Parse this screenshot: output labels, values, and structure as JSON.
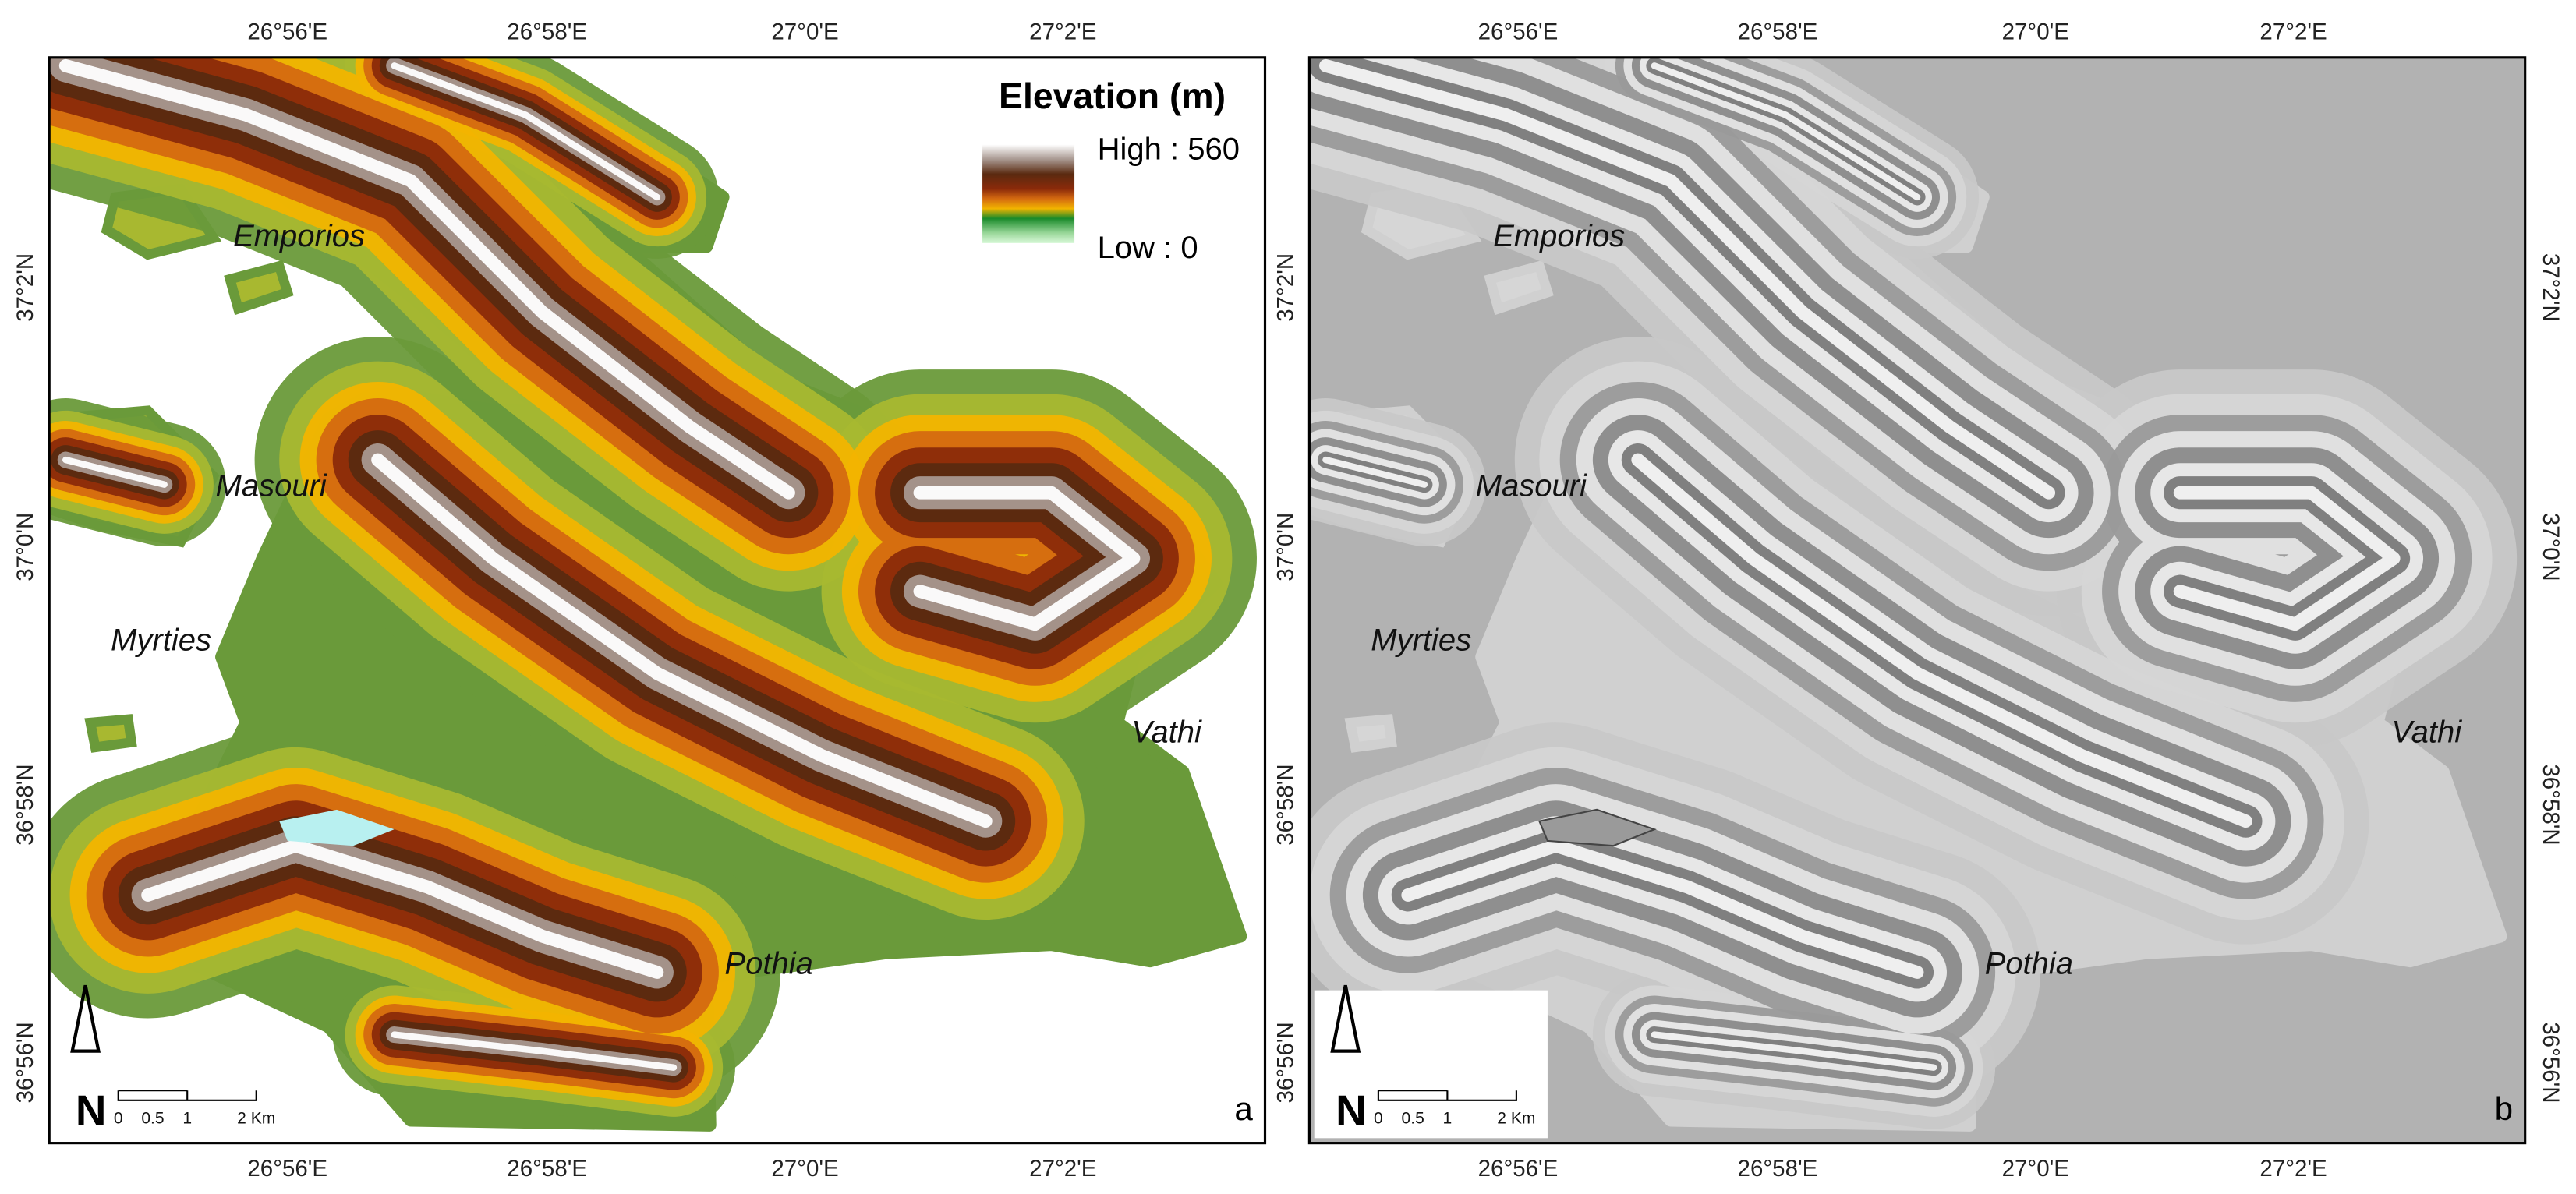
{
  "panels": [
    {
      "letter": "a",
      "lon_labels": [
        "26°56'E",
        "26°58'E",
        "27°0'E",
        "27°2'E"
      ],
      "lat_labels": [
        "37°2'N",
        "37°0'N",
        "36°58'N",
        "36°56'N"
      ],
      "places": [
        "Emporios",
        "Masouri",
        "Myrties",
        "Vathi",
        "Pothia"
      ]
    },
    {
      "letter": "b",
      "lon_labels": [
        "26°56'E",
        "26°58'E",
        "27°0'E",
        "27°2'E"
      ],
      "lat_labels": [
        "37°2'N",
        "37°0'N",
        "36°58'N",
        "36°56'N"
      ],
      "places": [
        "Emporios",
        "Masouri",
        "Myrties",
        "Vathi",
        "Pothia"
      ]
    }
  ],
  "legend": {
    "title": "Elevation (m)",
    "high": "High : 560",
    "low": "Low : 0"
  },
  "scale_bar": {
    "labels": [
      "0",
      "0.5",
      "1",
      "2 Km"
    ]
  },
  "north": "N"
}
